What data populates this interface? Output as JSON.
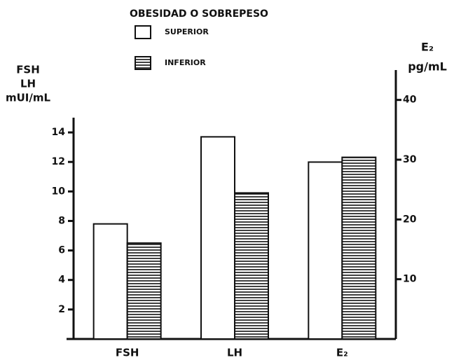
{
  "chart_data": {
    "type": "bar",
    "title": "OBESIDAD O SOBREPESO",
    "y_label": [
      "FSH",
      "LH",
      "mUI/mL"
    ],
    "y2_label": [
      "E₂",
      "pg/mL"
    ],
    "categories": [
      "FSH",
      "LH",
      "E₂"
    ],
    "axes": [
      "y",
      "y",
      "y2"
    ],
    "series": [
      {
        "name": "SUPERIOR",
        "color": "#ffffff",
        "pattern": "none",
        "values": [
          7.8,
          13.7,
          29.6
        ]
      },
      {
        "name": "INFERIOR",
        "color": "#111111",
        "pattern": "horizontal-lines",
        "values": [
          6.5,
          9.9,
          30.4
        ]
      }
    ],
    "ylim": [
      0,
      15
    ],
    "yticks": [
      2,
      4,
      6,
      8,
      10,
      12,
      14
    ],
    "y2lim": [
      0,
      45
    ],
    "y2ticks": [
      10,
      20,
      30,
      40
    ],
    "grid": false
  }
}
